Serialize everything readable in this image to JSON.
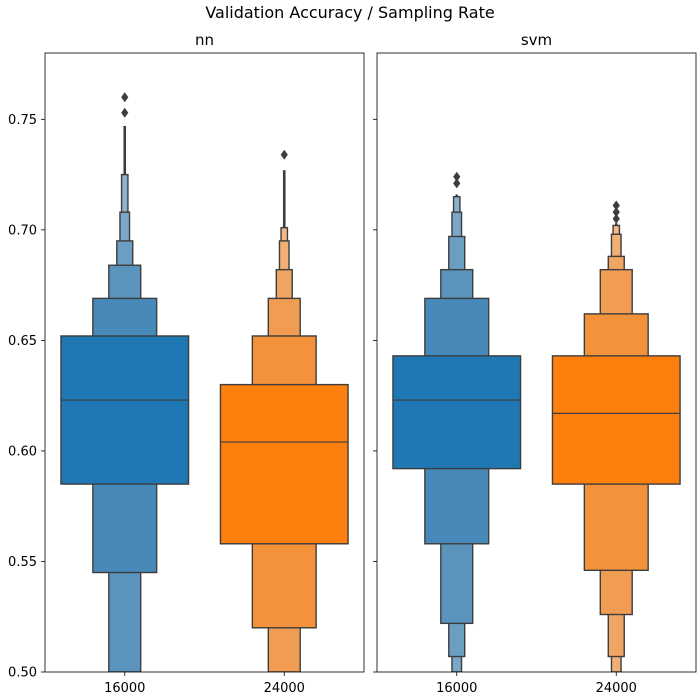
{
  "title": "Validation Accuracy / Sampling Rate",
  "chart_data": [
    {
      "type": "boxen",
      "title": "nn",
      "xlabel": "",
      "ylabel": "",
      "categories": [
        "16000",
        "24000"
      ],
      "ylim": [
        0.5,
        0.78
      ],
      "yticks": [
        "0.50",
        "0.55",
        "0.60",
        "0.65",
        "0.70",
        "0.75"
      ],
      "grid": false,
      "series": [
        {
          "category": "16000",
          "color": "#1f77b4",
          "median": 0.623,
          "levels": [
            [
              0.585,
              0.652
            ],
            [
              0.545,
              0.669
            ],
            [
              0.5,
              0.684
            ],
            [
              0.5,
              0.695
            ],
            [
              0.5,
              0.708
            ],
            [
              0.5,
              0.725
            ]
          ],
          "tail": [
            0.725,
            0.747
          ],
          "outliers": [
            0.753,
            0.76
          ]
        },
        {
          "category": "24000",
          "color": "#ff7f0e",
          "median": 0.604,
          "levels": [
            [
              0.558,
              0.63
            ],
            [
              0.52,
              0.652
            ],
            [
              0.5,
              0.669
            ],
            [
              0.5,
              0.682
            ],
            [
              0.5,
              0.695
            ],
            [
              0.5,
              0.701
            ]
          ],
          "tail": [
            0.701,
            0.727
          ],
          "outliers": [
            0.734
          ]
        }
      ]
    },
    {
      "type": "boxen",
      "title": "svm",
      "xlabel": "",
      "ylabel": "",
      "categories": [
        "16000",
        "24000"
      ],
      "ylim": [
        0.5,
        0.78
      ],
      "yticks": [
        "0.50",
        "0.55",
        "0.60",
        "0.65",
        "0.70",
        "0.75"
      ],
      "grid": false,
      "series": [
        {
          "category": "16000",
          "color": "#1f77b4",
          "median": 0.623,
          "levels": [
            [
              0.592,
              0.643
            ],
            [
              0.558,
              0.669
            ],
            [
              0.522,
              0.682
            ],
            [
              0.507,
              0.697
            ],
            [
              0.5,
              0.708
            ],
            [
              0.5,
              0.715
            ]
          ],
          "tail": [
            0.715,
            0.716
          ],
          "outliers": [
            0.721,
            0.724
          ]
        },
        {
          "category": "24000",
          "color": "#ff7f0e",
          "median": 0.617,
          "levels": [
            [
              0.585,
              0.643
            ],
            [
              0.546,
              0.662
            ],
            [
              0.526,
              0.682
            ],
            [
              0.507,
              0.688
            ],
            [
              0.5,
              0.698
            ],
            [
              0.5,
              0.702
            ]
          ],
          "tail": [
            0.702,
            0.703
          ],
          "outliers": [
            0.705,
            0.708,
            0.711
          ]
        }
      ]
    }
  ]
}
